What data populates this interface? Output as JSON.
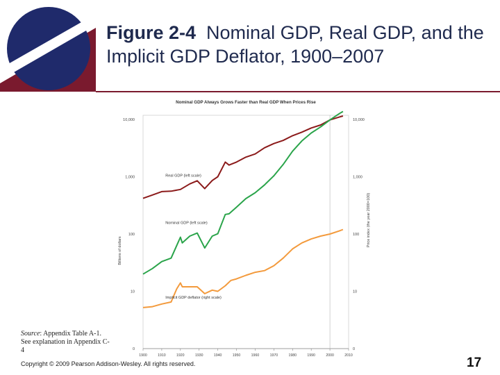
{
  "slide": {
    "title_figure": "Figure 2-4",
    "title_text": "Nominal GDP, Real GDP, and the Implicit GDP Deflator, 1900–2007",
    "source_label": "Source",
    "source_text": ": Appendix Table A-1. See explanation in Appendix C-4",
    "copyright": "Copyright © 2009 Pearson Addison-Wesley. All rights reserved.",
    "page_number": "17",
    "colors": {
      "navy": "#1f2a6b",
      "maroon": "#7a1a2e"
    }
  },
  "chart_data": {
    "type": "line",
    "title": "Nominal GDP Always Grows Faster than Real GDP When Prices Rise",
    "ylabel_left": "Billions of dollars",
    "ylabel_right": "Price index (the year 2000=100)",
    "x_ticks": [
      1900,
      1910,
      1920,
      1930,
      1940,
      1950,
      1960,
      1970,
      1980,
      1990,
      2000,
      2010
    ],
    "x_range": [
      1900,
      2010
    ],
    "y_scale": "log",
    "y_range_left": [
      1,
      10000
    ],
    "y_range_right": [
      1,
      10000
    ],
    "left_ticks": [
      {
        "value": 10000,
        "label": "10,000"
      },
      {
        "value": 1000,
        "label": "1,000"
      },
      {
        "value": 100,
        "label": "100"
      },
      {
        "value": 10,
        "label": "10"
      },
      {
        "value": 1,
        "label": "0"
      }
    ],
    "right_ticks": [
      {
        "value": 10000,
        "label": "10,000"
      },
      {
        "value": 1000,
        "label": "1,000"
      },
      {
        "value": 100,
        "label": "100"
      },
      {
        "value": 10,
        "label": "10"
      },
      {
        "value": 1,
        "label": "0"
      }
    ],
    "reference_line_x": 2000,
    "series": [
      {
        "name": "Real GDP (left scale)",
        "color": "#8b1a1a",
        "label_at": [
          1912,
          1000
        ],
        "x": [
          1900,
          1905,
          1910,
          1915,
          1920,
          1925,
          1929,
          1933,
          1937,
          1940,
          1944,
          1946,
          1950,
          1955,
          1960,
          1965,
          1970,
          1975,
          1980,
          1985,
          1990,
          1995,
          2000,
          2005,
          2007
        ],
        "values": [
          420,
          480,
          550,
          560,
          600,
          750,
          850,
          620,
          860,
          1000,
          1800,
          1600,
          1800,
          2200,
          2500,
          3200,
          3800,
          4300,
          5200,
          6000,
          7100,
          8000,
          9800,
          11000,
          11500
        ]
      },
      {
        "name": "Nominal GDP (left scale)",
        "color": "#2aa44a",
        "label_at": [
          1912,
          150
        ],
        "x": [
          1900,
          1905,
          1910,
          1915,
          1920,
          1921,
          1925,
          1929,
          1933,
          1937,
          1940,
          1944,
          1946,
          1950,
          1955,
          1960,
          1965,
          1970,
          1975,
          1980,
          1985,
          1990,
          1995,
          2000,
          2005,
          2007
        ],
        "values": [
          20,
          25,
          33,
          38,
          88,
          70,
          92,
          104,
          57,
          92,
          101,
          220,
          225,
          294,
          415,
          526,
          720,
          1040,
          1640,
          2790,
          4220,
          5800,
          7400,
          9800,
          12600,
          13800
        ]
      },
      {
        "name": "Implicit GDP deflator (right scale)",
        "color": "#f39a3c",
        "label_at": [
          1912,
          7.5
        ],
        "x": [
          1900,
          1905,
          1910,
          1915,
          1918,
          1920,
          1921,
          1925,
          1929,
          1933,
          1937,
          1940,
          1944,
          1947,
          1950,
          1955,
          1960,
          1965,
          1970,
          1975,
          1980,
          1985,
          1990,
          1995,
          2000,
          2005,
          2007
        ],
        "values": [
          5.2,
          5.4,
          6,
          6.5,
          11,
          14,
          12,
          12,
          12,
          9.1,
          10.5,
          10,
          12.5,
          15.5,
          16.5,
          19,
          21.5,
          23,
          28,
          38,
          55,
          70,
          82,
          92,
          100,
          113,
          120
        ]
      }
    ]
  }
}
